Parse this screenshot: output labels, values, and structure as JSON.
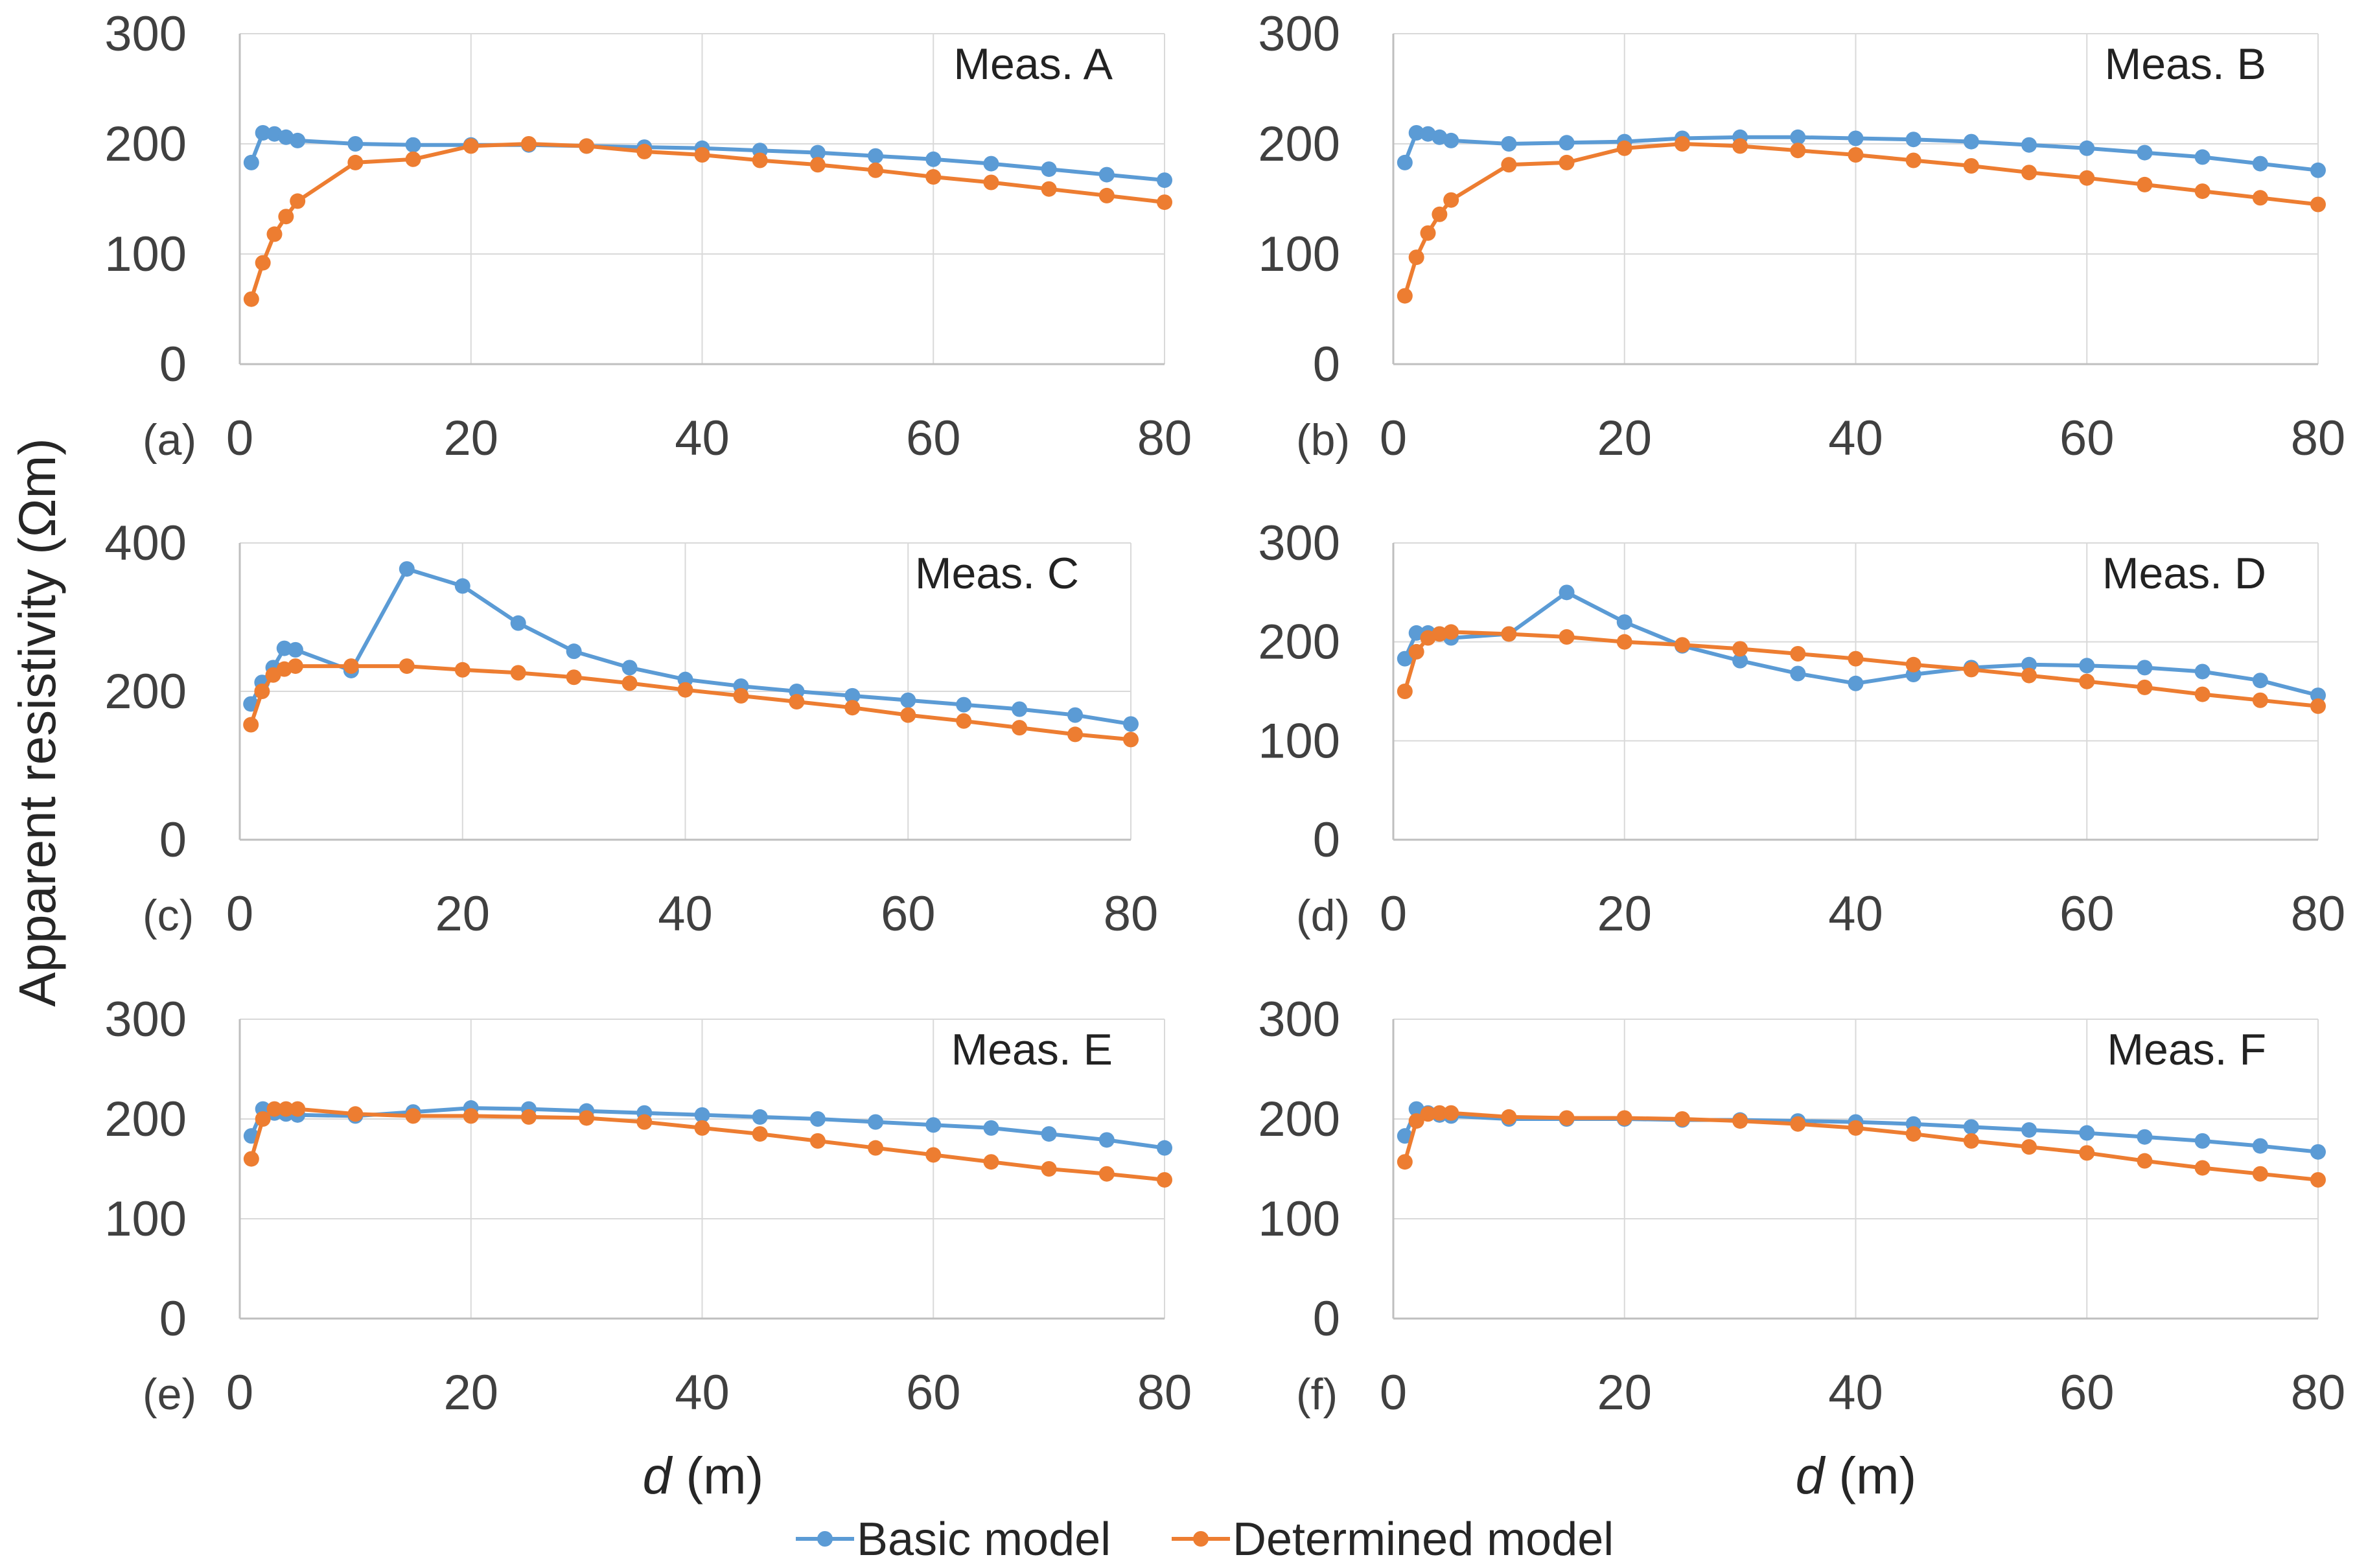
{
  "figure": {
    "ylabel": "Apparent resistivity (Ωm)",
    "xlabel_var": "d",
    "xlabel_unit": " (m)",
    "legend": [
      {
        "name": "Basic model",
        "color": "#5B9BD5"
      },
      {
        "name": "Determined model",
        "color": "#ED7D31"
      }
    ]
  },
  "chart_data": [
    {
      "type": "line",
      "panel": "(a)",
      "title": "Meas. A",
      "xlim": [
        0,
        80
      ],
      "xticks": [
        0,
        20,
        40,
        60,
        80
      ],
      "ylim": [
        0,
        300
      ],
      "yticks": [
        0,
        100,
        200,
        300
      ],
      "x": [
        1,
        2,
        3,
        4,
        5,
        10,
        15,
        20,
        25,
        30,
        35,
        40,
        45,
        50,
        55,
        60,
        65,
        70,
        75,
        80
      ],
      "series": [
        {
          "name": "Basic model",
          "values": [
            183,
            210,
            209,
            206,
            203,
            200,
            199,
            199,
            199,
            198,
            197,
            196,
            194,
            192,
            189,
            186,
            182,
            177,
            172,
            167
          ]
        },
        {
          "name": "Determined model",
          "values": [
            59,
            92,
            118,
            134,
            148,
            183,
            186,
            198,
            200,
            198,
            193,
            190,
            185,
            181,
            176,
            170,
            165,
            159,
            153,
            147
          ]
        }
      ]
    },
    {
      "type": "line",
      "panel": "(b)",
      "title": "Meas. B",
      "xlim": [
        0,
        80
      ],
      "xticks": [
        0,
        20,
        40,
        60,
        80
      ],
      "ylim": [
        0,
        300
      ],
      "yticks": [
        0,
        100,
        200,
        300
      ],
      "x": [
        1,
        2,
        3,
        4,
        5,
        10,
        15,
        20,
        25,
        30,
        35,
        40,
        45,
        50,
        55,
        60,
        65,
        70,
        75,
        80
      ],
      "series": [
        {
          "name": "Basic model",
          "values": [
            183,
            210,
            209,
            206,
            203,
            200,
            201,
            202,
            205,
            206,
            206,
            205,
            204,
            202,
            199,
            196,
            192,
            188,
            182,
            176
          ]
        },
        {
          "name": "Determined model",
          "values": [
            62,
            97,
            119,
            136,
            149,
            181,
            183,
            196,
            200,
            198,
            194,
            190,
            185,
            180,
            174,
            169,
            163,
            157,
            151,
            145
          ]
        }
      ]
    },
    {
      "type": "line",
      "panel": "(c)",
      "title": "Meas. C",
      "xlim": [
        0,
        80
      ],
      "xticks": [
        0,
        20,
        40,
        60,
        80
      ],
      "ylim": [
        0,
        400
      ],
      "yticks": [
        0,
        200,
        400
      ],
      "x": [
        1,
        2,
        3,
        4,
        5,
        10,
        15,
        20,
        25,
        30,
        35,
        40,
        45,
        50,
        55,
        60,
        65,
        70,
        75,
        80
      ],
      "series": [
        {
          "name": "Basic model",
          "values": [
            183,
            212,
            232,
            258,
            256,
            228,
            365,
            342,
            292,
            254,
            232,
            216,
            207,
            200,
            194,
            188,
            182,
            176,
            168,
            156
          ]
        },
        {
          "name": "Determined model",
          "values": [
            155,
            200,
            222,
            230,
            234,
            234,
            234,
            229,
            225,
            219,
            211,
            202,
            194,
            186,
            178,
            168,
            160,
            151,
            142,
            135
          ]
        }
      ]
    },
    {
      "type": "line",
      "panel": "(d)",
      "title": "Meas. D",
      "xlim": [
        0,
        80
      ],
      "xticks": [
        0,
        20,
        40,
        60,
        80
      ],
      "ylim": [
        0,
        300
      ],
      "yticks": [
        0,
        100,
        200,
        300
      ],
      "x": [
        1,
        2,
        3,
        4,
        5,
        10,
        15,
        20,
        25,
        30,
        35,
        40,
        45,
        50,
        55,
        60,
        65,
        70,
        75,
        80
      ],
      "series": [
        {
          "name": "Basic model",
          "values": [
            183,
            209,
            209,
            208,
            204,
            208,
            250,
            220,
            196,
            181,
            168,
            158,
            167,
            174,
            177,
            176,
            174,
            170,
            161,
            146
          ]
        },
        {
          "name": "Determined model",
          "values": [
            150,
            190,
            204,
            208,
            210,
            208,
            205,
            200,
            197,
            193,
            188,
            183,
            177,
            172,
            166,
            160,
            154,
            147,
            141,
            135
          ]
        }
      ]
    },
    {
      "type": "line",
      "panel": "(e)",
      "title": "Meas. E",
      "xlim": [
        0,
        80
      ],
      "xticks": [
        0,
        20,
        40,
        60,
        80
      ],
      "ylim": [
        0,
        300
      ],
      "yticks": [
        0,
        100,
        200,
        300
      ],
      "x": [
        1,
        2,
        3,
        4,
        5,
        10,
        15,
        20,
        25,
        30,
        35,
        40,
        45,
        50,
        55,
        60,
        65,
        70,
        75,
        80
      ],
      "series": [
        {
          "name": "Basic model",
          "values": [
            183,
            210,
            206,
            205,
            204,
            203,
            207,
            211,
            210,
            208,
            206,
            204,
            202,
            200,
            197,
            194,
            191,
            185,
            179,
            171
          ]
        },
        {
          "name": "Determined model",
          "values": [
            160,
            200,
            210,
            210,
            210,
            205,
            203,
            203,
            202,
            201,
            197,
            191,
            185,
            178,
            171,
            164,
            157,
            150,
            145,
            139
          ]
        }
      ]
    },
    {
      "type": "line",
      "panel": "(f)",
      "title": "Meas. F",
      "xlim": [
        0,
        80
      ],
      "xticks": [
        0,
        20,
        40,
        60,
        80
      ],
      "ylim": [
        0,
        300
      ],
      "yticks": [
        0,
        100,
        200,
        300
      ],
      "x": [
        1,
        2,
        3,
        4,
        5,
        10,
        15,
        20,
        25,
        30,
        35,
        40,
        45,
        50,
        55,
        60,
        65,
        70,
        75,
        80
      ],
      "series": [
        {
          "name": "Basic model",
          "values": [
            183,
            210,
            206,
            204,
            203,
            200,
            200,
            200,
            199,
            199,
            198,
            197,
            195,
            192,
            189,
            186,
            182,
            178,
            173,
            167
          ]
        },
        {
          "name": "Determined model",
          "values": [
            157,
            198,
            205,
            206,
            206,
            202,
            201,
            201,
            200,
            198,
            195,
            191,
            185,
            178,
            172,
            166,
            158,
            151,
            145,
            139
          ]
        }
      ]
    }
  ]
}
